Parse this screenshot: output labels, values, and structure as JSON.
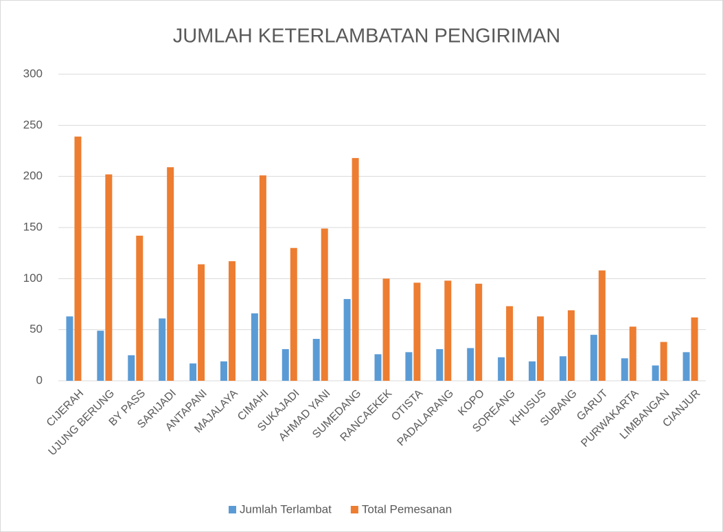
{
  "chart_data": {
    "type": "bar",
    "title": "JUMLAH KETERLAMBATAN PENGIRIMAN",
    "categories": [
      "CIJERAH",
      "UJUNG BERUNG",
      "BY PASS",
      "SARIJADI",
      "ANTAPANI",
      "MAJALAYA",
      "CIMAHI",
      "SUKAJADI",
      "AHMAD YANI",
      "SUMEDANG",
      "RANCAEKEK",
      "OTISTA",
      "PADALARANG",
      "KOPO",
      "SOREANG",
      "KHUSUS",
      "SUBANG",
      "GARUT",
      "PURWAKARTA",
      "LIMBANGAN",
      "CIANJUR"
    ],
    "series": [
      {
        "name": "Jumlah Terlambat",
        "color": "#5b9bd5",
        "values": [
          63,
          49,
          25,
          61,
          17,
          19,
          66,
          31,
          41,
          80,
          26,
          28,
          31,
          32,
          23,
          19,
          24,
          45,
          22,
          15,
          28
        ]
      },
      {
        "name": "Total Pemesanan",
        "color": "#ed7d31",
        "values": [
          239,
          202,
          142,
          209,
          114,
          117,
          201,
          130,
          149,
          218,
          100,
          96,
          98,
          95,
          73,
          63,
          69,
          108,
          53,
          38,
          62
        ]
      }
    ],
    "ylim": [
      0,
      300
    ],
    "yticks": [
      0,
      50,
      100,
      150,
      200,
      250,
      300
    ],
    "grid": true,
    "legend": "bottom"
  }
}
